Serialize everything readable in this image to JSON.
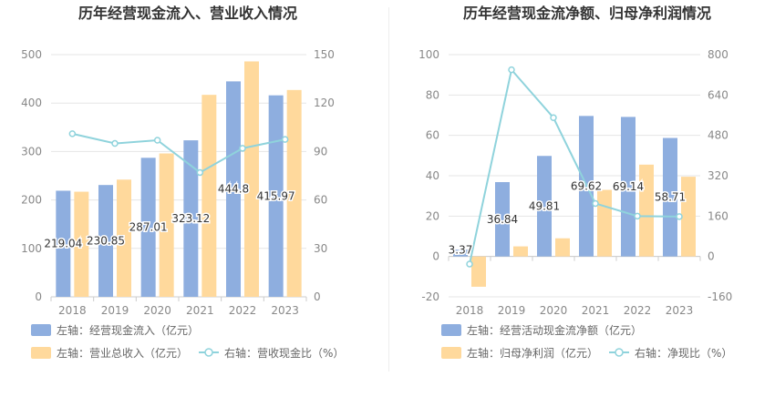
{
  "colors": {
    "bar_primary": "#8eaedf",
    "bar_secondary": "#ffd99c",
    "line": "#8fd3dc",
    "axis_text": "#888888",
    "grid": "#e5e5e5",
    "title": "#333333",
    "label": "#333333"
  },
  "chart_data": [
    {
      "type": "bar",
      "title": "历年经营现金流入、营业收入情况",
      "categories": [
        "2018",
        "2019",
        "2020",
        "2021",
        "2022",
        "2023"
      ],
      "ylim_left": [
        0,
        500
      ],
      "yticks_left": [
        0,
        100,
        200,
        300,
        400,
        500
      ],
      "ylim_right": [
        0,
        150
      ],
      "yticks_right": [
        0,
        30,
        60,
        90,
        120,
        150
      ],
      "series": [
        {
          "name": "左轴：经营现金流入（亿元）",
          "kind": "bar",
          "axis": "left",
          "values": [
            219.04,
            230.85,
            287.01,
            323.12,
            444.8,
            415.97
          ],
          "data_labels": [
            "219.04",
            "230.85",
            "287.01",
            "323.12",
            "444.8",
            "415.97"
          ]
        },
        {
          "name": "左轴：营业总收入（亿元）",
          "kind": "bar",
          "axis": "left",
          "values": [
            217,
            242,
            296,
            417,
            486,
            427
          ]
        },
        {
          "name": "右轴：营收现金比（%）",
          "kind": "line",
          "axis": "right",
          "values": [
            101,
            95,
            97,
            77,
            92,
            97.5
          ]
        }
      ],
      "legend": "bottom"
    },
    {
      "type": "bar",
      "title": "历年经营现金流净额、归母净利润情况",
      "categories": [
        "2018",
        "2019",
        "2020",
        "2021",
        "2022",
        "2023"
      ],
      "ylim_left": [
        -20,
        100
      ],
      "yticks_left": [
        -20,
        0,
        20,
        40,
        60,
        80,
        100
      ],
      "ylim_right": [
        -160,
        800
      ],
      "yticks_right": [
        -160,
        0,
        160,
        320,
        480,
        640,
        800
      ],
      "series": [
        {
          "name": "左轴：经营活动现金流净额（亿元）",
          "kind": "bar",
          "axis": "left",
          "values": [
            3.37,
            36.84,
            49.81,
            69.62,
            69.14,
            58.71
          ],
          "data_labels": [
            "3.37",
            "36.84",
            "49.81",
            "69.62",
            "69.14",
            "58.71"
          ]
        },
        {
          "name": "左轴：归母净利润（亿元）",
          "kind": "bar",
          "axis": "left",
          "values": [
            -15,
            5,
            9,
            33,
            45.5,
            39.5
          ]
        },
        {
          "name": "右轴：净现比（%）",
          "kind": "line",
          "axis": "right",
          "values": [
            -30,
            740,
            550,
            210,
            160,
            158
          ]
        }
      ],
      "legend": "bottom"
    }
  ]
}
